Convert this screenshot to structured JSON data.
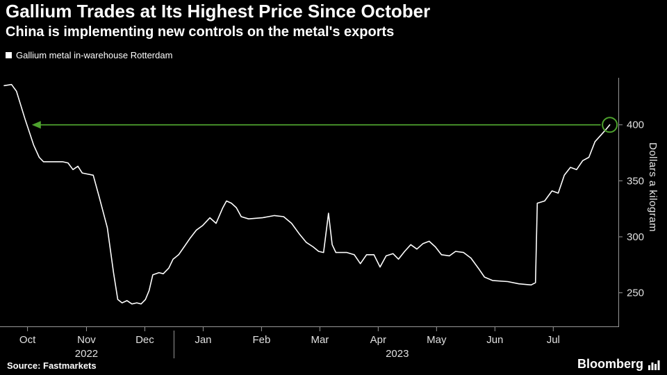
{
  "header": {
    "title": "Gallium Trades at Its Highest Price Since October",
    "subtitle": "China is implementing new controls on the metal's exports"
  },
  "legend": {
    "label": "Gallium metal in-warehouse Rotterdam",
    "marker_color": "#ffffff"
  },
  "footer": {
    "source": "Source: Fastmarkets",
    "brand": "Bloomberg"
  },
  "colors": {
    "background": "#000000",
    "text": "#ffffff",
    "line": "#ffffff",
    "annotation_green": "#4ea32e",
    "axis": "#999999",
    "tick_text": "#e0e0e0"
  },
  "chart_data": {
    "type": "line",
    "series_name": "Gallium metal in-warehouse Rotterdam",
    "ylabel": "Dollars a kilogram",
    "ylim": [
      220,
      442
    ],
    "yticks": [
      250,
      300,
      350,
      400
    ],
    "xticks": [
      "Oct",
      "Nov",
      "Dec",
      "Jan",
      "Feb",
      "Mar",
      "Apr",
      "May",
      "Jun",
      "Jul"
    ],
    "xtick_pos": [
      0.038,
      0.134,
      0.229,
      0.324,
      0.419,
      0.514,
      0.609,
      0.704,
      0.799,
      0.894
    ],
    "year_labels": [
      {
        "label": "2022",
        "x": 0.134
      },
      {
        "label": "2023",
        "x": 0.64
      }
    ],
    "year_separator_x": 0.2765,
    "legend_position": "top-left",
    "grid": false,
    "annotation": {
      "type": "left-arrow-at-level",
      "level": 400,
      "from_x": 0.045,
      "circle_last_point": true
    },
    "points": [
      [
        0.0,
        435
      ],
      [
        0.012,
        436
      ],
      [
        0.02,
        430
      ],
      [
        0.034,
        405
      ],
      [
        0.048,
        382
      ],
      [
        0.057,
        371
      ],
      [
        0.064,
        367
      ],
      [
        0.095,
        367
      ],
      [
        0.104,
        366
      ],
      [
        0.112,
        360
      ],
      [
        0.12,
        363
      ],
      [
        0.127,
        357
      ],
      [
        0.145,
        355
      ],
      [
        0.155,
        335
      ],
      [
        0.168,
        308
      ],
      [
        0.178,
        268
      ],
      [
        0.185,
        244
      ],
      [
        0.192,
        241
      ],
      [
        0.2,
        243
      ],
      [
        0.208,
        240
      ],
      [
        0.216,
        241
      ],
      [
        0.223,
        240
      ],
      [
        0.23,
        244
      ],
      [
        0.236,
        252
      ],
      [
        0.242,
        266
      ],
      [
        0.252,
        268
      ],
      [
        0.259,
        267
      ],
      [
        0.268,
        272
      ],
      [
        0.275,
        280
      ],
      [
        0.284,
        284
      ],
      [
        0.293,
        291
      ],
      [
        0.303,
        299
      ],
      [
        0.313,
        306
      ],
      [
        0.323,
        310
      ],
      [
        0.335,
        317
      ],
      [
        0.345,
        312
      ],
      [
        0.356,
        326
      ],
      [
        0.362,
        332
      ],
      [
        0.37,
        330
      ],
      [
        0.378,
        326
      ],
      [
        0.386,
        318
      ],
      [
        0.398,
        316
      ],
      [
        0.42,
        317
      ],
      [
        0.44,
        319
      ],
      [
        0.455,
        318
      ],
      [
        0.468,
        312
      ],
      [
        0.48,
        303
      ],
      [
        0.492,
        295
      ],
      [
        0.503,
        291
      ],
      [
        0.512,
        287
      ],
      [
        0.52,
        286
      ],
      [
        0.528,
        321
      ],
      [
        0.534,
        293
      ],
      [
        0.54,
        286
      ],
      [
        0.558,
        286
      ],
      [
        0.57,
        284
      ],
      [
        0.58,
        276
      ],
      [
        0.59,
        284
      ],
      [
        0.602,
        284
      ],
      [
        0.612,
        273
      ],
      [
        0.622,
        283
      ],
      [
        0.633,
        285
      ],
      [
        0.642,
        280
      ],
      [
        0.652,
        287
      ],
      [
        0.662,
        293
      ],
      [
        0.672,
        289
      ],
      [
        0.682,
        294
      ],
      [
        0.692,
        296
      ],
      [
        0.702,
        291
      ],
      [
        0.712,
        284
      ],
      [
        0.725,
        283
      ],
      [
        0.735,
        287
      ],
      [
        0.748,
        286
      ],
      [
        0.76,
        281
      ],
      [
        0.772,
        272
      ],
      [
        0.782,
        264
      ],
      [
        0.795,
        261
      ],
      [
        0.82,
        260
      ],
      [
        0.838,
        258
      ],
      [
        0.858,
        257
      ],
      [
        0.865,
        259
      ],
      [
        0.868,
        330
      ],
      [
        0.88,
        332
      ],
      [
        0.892,
        341
      ],
      [
        0.902,
        339
      ],
      [
        0.912,
        355
      ],
      [
        0.922,
        362
      ],
      [
        0.932,
        360
      ],
      [
        0.942,
        368
      ],
      [
        0.952,
        371
      ],
      [
        0.962,
        385
      ],
      [
        0.972,
        391
      ],
      [
        0.98,
        396
      ],
      [
        0.986,
        400
      ]
    ]
  }
}
